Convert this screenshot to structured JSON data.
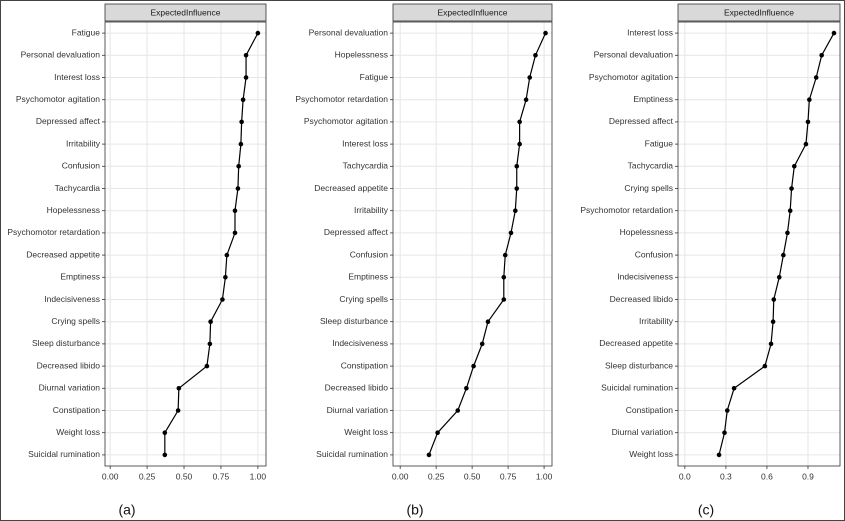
{
  "chart_data": [
    {
      "type": "line",
      "facet_label": "ExpectedInfluence",
      "caption": "(a)",
      "color": "#000000",
      "grid": true,
      "categories": [
        "Fatigue",
        "Personal devaluation",
        "Interest loss",
        "Psychomotor agitation",
        "Depressed affect",
        "Irritability",
        "Confusion",
        "Tachycardia",
        "Hopelessness",
        "Psychomotor retardation",
        "Decreased appetite",
        "Emptiness",
        "Indecisiveness",
        "Crying spells",
        "Sleep disturbance",
        "Decreased libido",
        "Diurnal variation",
        "Constipation",
        "Weight loss",
        "Suicidal rumination"
      ],
      "values": [
        1.0,
        0.92,
        0.92,
        0.9,
        0.89,
        0.885,
        0.87,
        0.865,
        0.845,
        0.845,
        0.79,
        0.78,
        0.76,
        0.68,
        0.675,
        0.655,
        0.465,
        0.46,
        0.37,
        0.37
      ],
      "xlim": [
        -0.035,
        1.055
      ],
      "xticks": [
        {
          "value": 0,
          "label": "0.00"
        },
        {
          "value": 0.25,
          "label": "0.25"
        },
        {
          "value": 0.5,
          "label": "0.50"
        },
        {
          "value": 0.75,
          "label": "0.75"
        },
        {
          "value": 1,
          "label": "1.00"
        }
      ]
    },
    {
      "type": "line",
      "facet_label": "ExpectedInfluence",
      "caption": "(b)",
      "color": "#000000",
      "grid": true,
      "categories": [
        "Personal devaluation",
        "Hopelessness",
        "Fatigue",
        "Psychomotor retardation",
        "Psychomotor agitation",
        "Interest loss",
        "Tachycardia",
        "Decreased appetite",
        "Irritability",
        "Depressed affect",
        "Confusion",
        "Emptiness",
        "Crying spells",
        "Sleep disturbance",
        "Indecisiveness",
        "Constipation",
        "Decreased libido",
        "Diurnal variation",
        "Weight loss",
        "Suicidal rumination"
      ],
      "values": [
        1.01,
        0.94,
        0.9,
        0.875,
        0.83,
        0.83,
        0.81,
        0.81,
        0.8,
        0.77,
        0.73,
        0.72,
        0.72,
        0.61,
        0.57,
        0.51,
        0.46,
        0.4,
        0.26,
        0.2
      ],
      "xlim": [
        -0.05,
        1.055
      ],
      "xticks": [
        {
          "value": 0,
          "label": "0.00"
        },
        {
          "value": 0.25,
          "label": "0.25"
        },
        {
          "value": 0.5,
          "label": "0.50"
        },
        {
          "value": 0.75,
          "label": "0.75"
        },
        {
          "value": 1,
          "label": "1.00"
        }
      ]
    },
    {
      "type": "line",
      "facet_label": "ExpectedInfluence",
      "caption": "(c)",
      "color": "#000000",
      "grid": true,
      "categories": [
        "Interest loss",
        "Personal devaluation",
        "Psychomotor agitation",
        "Emptiness",
        "Depressed affect",
        "Fatigue",
        "Tachycardia",
        "Crying spells",
        "Psychomotor retardation",
        "Hopelessness",
        "Confusion",
        "Indecisiveness",
        "Decreased libido",
        "Irritability",
        "Decreased appetite",
        "Sleep disturbance",
        "Suicidal rumination",
        "Constipation",
        "Diurnal variation",
        "Weight loss"
      ],
      "values": [
        1.09,
        1.0,
        0.96,
        0.91,
        0.9,
        0.885,
        0.8,
        0.78,
        0.77,
        0.75,
        0.72,
        0.69,
        0.65,
        0.645,
        0.63,
        0.585,
        0.36,
        0.31,
        0.29,
        0.25
      ],
      "xlim": [
        -0.05,
        1.134
      ],
      "xticks": [
        {
          "value": 0,
          "label": "0.0"
        },
        {
          "value": 0.3,
          "label": "0.3"
        },
        {
          "value": 0.6,
          "label": "0.6"
        },
        {
          "value": 0.9,
          "label": "0.9"
        }
      ]
    }
  ]
}
